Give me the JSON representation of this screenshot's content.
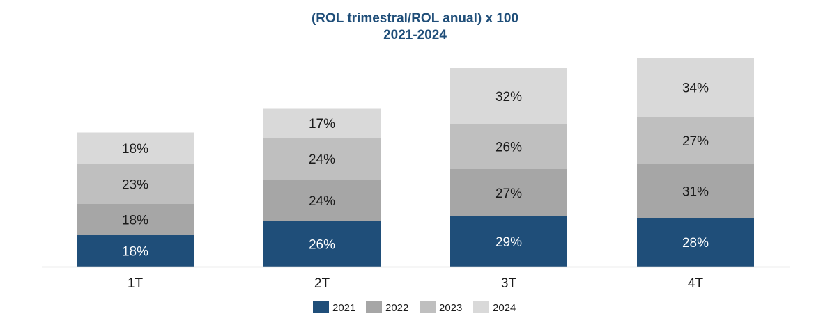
{
  "chart_data": {
    "type": "bar",
    "stacked": true,
    "title": "(ROL trimestral/ROL anual) x 100",
    "subtitle": "2021-2024",
    "categories": [
      "1T",
      "2T",
      "3T",
      "4T"
    ],
    "series": [
      {
        "name": "2021",
        "color": "#1f4e79",
        "label_color": "#ffffff",
        "values": [
          18,
          26,
          29,
          28
        ],
        "labels": [
          "18%",
          "26%",
          "29%",
          "28%"
        ]
      },
      {
        "name": "2022",
        "color": "#a6a6a6",
        "label_color": "#1a1a1a",
        "values": [
          18,
          24,
          27,
          31
        ],
        "labels": [
          "18%",
          "24%",
          "27%",
          "31%"
        ]
      },
      {
        "name": "2023",
        "color": "#bfbfbf",
        "label_color": "#1a1a1a",
        "values": [
          23,
          24,
          26,
          27
        ],
        "labels": [
          "23%",
          "24%",
          "26%",
          "27%"
        ]
      },
      {
        "name": "2024",
        "color": "#d9d9d9",
        "label_color": "#1a1a1a",
        "values": [
          18,
          17,
          32,
          34
        ],
        "labels": [
          "18%",
          "17%",
          "32%",
          "34%"
        ]
      }
    ],
    "legend_position": "bottom",
    "grid": false,
    "y_axis_visible": false,
    "ylim": [
      0,
      120
    ]
  }
}
